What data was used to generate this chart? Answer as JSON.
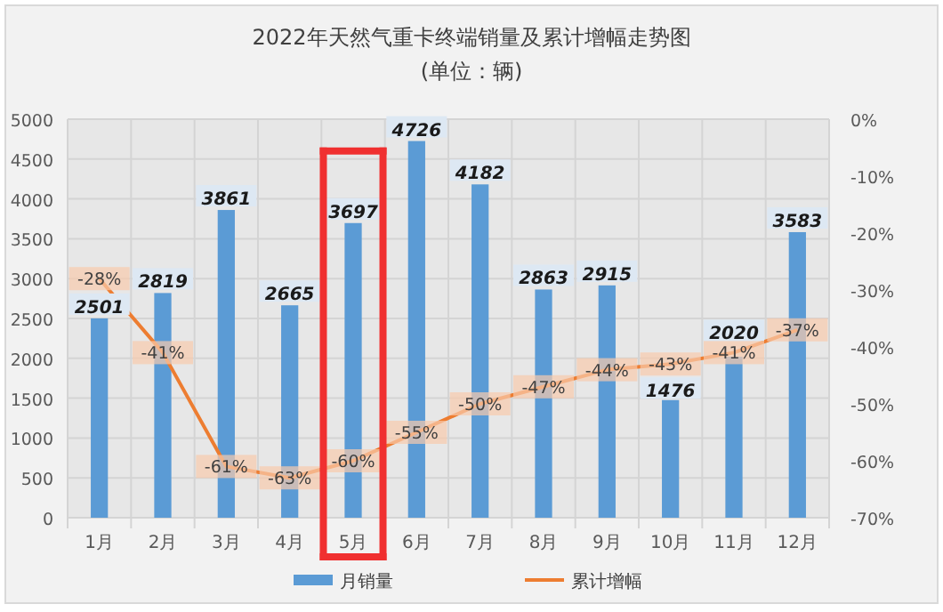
{
  "chart_data": {
    "type": "bar",
    "title": "2022年天然气重卡终端销量及累计增幅走势图",
    "subtitle": "(单位：辆)",
    "categories": [
      "1月",
      "2月",
      "3月",
      "4月",
      "5月",
      "6月",
      "7月",
      "8月",
      "9月",
      "10月",
      "11月",
      "12月"
    ],
    "series": [
      {
        "name": "月销量",
        "color": "#5b9bd5",
        "values": [
          2501,
          2819,
          3861,
          2665,
          3697,
          4726,
          4182,
          2863,
          2915,
          1476,
          2020,
          3583
        ],
        "value_labels": [
          "2501",
          "2819",
          "3861",
          "2665",
          "3697",
          "4726",
          "4182",
          "2863",
          "2915",
          "1476",
          "2020",
          "3583"
        ]
      },
      {
        "name": "累计增幅",
        "type": "line",
        "axis": "y2",
        "color": "#ed7d31",
        "values": [
          -28,
          -41,
          -61,
          -63,
          -60,
          -55,
          -50,
          -47,
          -44,
          -43,
          -41,
          -37
        ],
        "value_labels": [
          "-28%",
          "-41%",
          "-61%",
          "-63%",
          "-60%",
          "-55%",
          "-50%",
          "-47%",
          "-44%",
          "-43%",
          "-41%",
          "-37%"
        ]
      }
    ],
    "ylim": [
      0,
      5000
    ],
    "yticks": [
      0,
      500,
      1000,
      1500,
      2000,
      2500,
      3000,
      3500,
      4000,
      4500,
      5000
    ],
    "y2lim": [
      -70,
      0
    ],
    "y2ticks": [
      {
        "value": 0,
        "label": "0%"
      },
      {
        "value": -10,
        "label": "-10%"
      },
      {
        "value": -20,
        "label": "-20%"
      },
      {
        "value": -30,
        "label": "-30%"
      },
      {
        "value": -40,
        "label": "-40%"
      },
      {
        "value": -50,
        "label": "-50%"
      },
      {
        "value": -60,
        "label": "-60%"
      },
      {
        "value": -70,
        "label": "-70%"
      }
    ],
    "grid": true,
    "legend": "bottom",
    "marker": "square",
    "line_style": "solid"
  }
}
